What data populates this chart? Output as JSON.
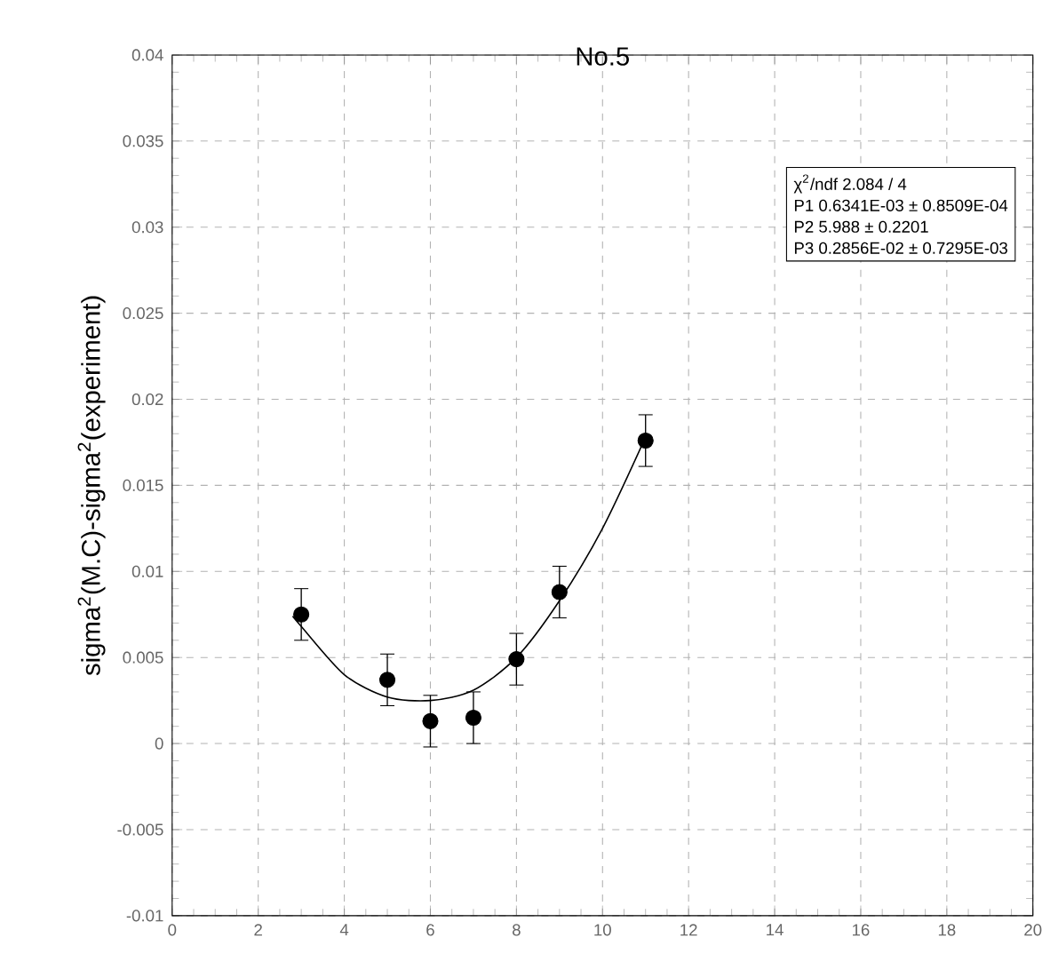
{
  "chart_data": {
    "type": "scatter",
    "title": "No.5",
    "ylabel": "sigma$^{2}$(M.C)-sigma$^{2}$(experiment)",
    "x": [
      3,
      5,
      6,
      7,
      8,
      9,
      11
    ],
    "series": [
      {
        "color": "#000000",
        "marker": "circle",
        "values": [
          0.0075,
          0.0037,
          0.0013,
          0.0015,
          0.0049,
          0.0088,
          0.0176
        ],
        "errors": [
          0.0015,
          0.0015,
          0.0015,
          0.0015,
          0.0015,
          0.0015,
          0.0015
        ]
      },
      {
        "type": "line",
        "color": "#000000",
        "marker": "none",
        "x": [
          2.8,
          3,
          4,
          5,
          6,
          7,
          8,
          9,
          10,
          11
        ],
        "values": [
          0.0074,
          0.0068,
          0.004,
          0.0027,
          0.0025,
          0.0031,
          0.005,
          0.0083,
          0.0125,
          0.0178
        ]
      }
    ],
    "xlim": [
      0,
      20
    ],
    "xticks": [
      0,
      2,
      4,
      6,
      8,
      10,
      12,
      14,
      16,
      18,
      20
    ],
    "ylim": [
      -0.01,
      0.04
    ],
    "yticks": [
      -0.01,
      -0.005,
      0,
      0.005,
      0.01,
      0.015,
      0.02,
      0.025,
      0.03,
      0.035,
      0.04
    ],
    "grid": true,
    "annotations": [
      "χ$^{2}$/ndf 2.084 / 4",
      "P1 0.6341E-03 ± 0.8509E-04",
      "P2 5.988 ± 0.2201",
      "P3 0.2856E-02 ± 0.7295E-03"
    ]
  }
}
